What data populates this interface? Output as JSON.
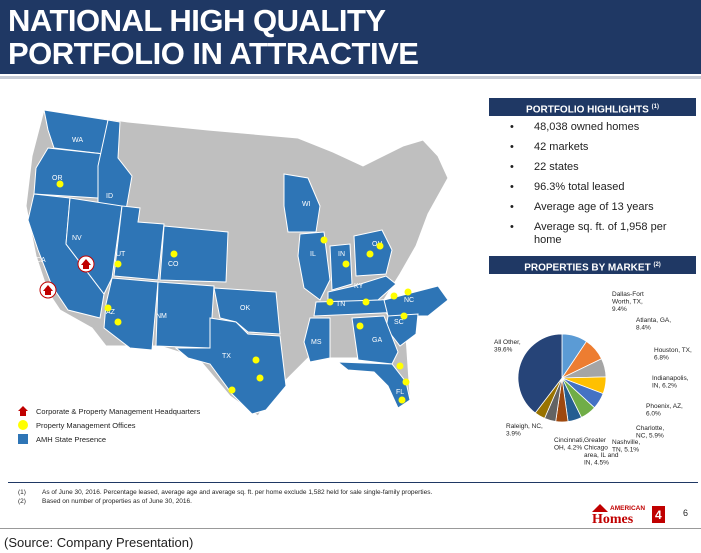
{
  "header": {
    "title": "NATIONAL HIGH QUALITY PORTFOLIO IN ATTRACTIVE MARKETS"
  },
  "highlights": {
    "title": "PORTFOLIO HIGHLIGHTS",
    "title_sup": "(1)",
    "items": [
      "48,038 owned homes",
      "42 markets",
      "22 states",
      "96.3% total leased",
      "Average age of 13 years",
      "Average sq. ft. of 1,958 per home"
    ]
  },
  "markets": {
    "title": "PROPERTIES BY MARKET",
    "title_sup": "(2)"
  },
  "chart_data": {
    "type": "pie",
    "title": "PROPERTIES BY MARKET (2)",
    "slices": [
      {
        "label": "Dallas-Fort Worth, TX, 9.4%",
        "value": 9.4,
        "color": "#5b9bd5"
      },
      {
        "label": "Atlanta, GA, 8.4%",
        "value": 8.4,
        "color": "#ed7d31"
      },
      {
        "label": "Houston, TX, 6.8%",
        "value": 6.8,
        "color": "#a5a5a5"
      },
      {
        "label": "Indianapolis, IN, 6.2%",
        "value": 6.2,
        "color": "#ffc000"
      },
      {
        "label": "Phoenix, AZ, 6.0%",
        "value": 6.0,
        "color": "#4472c4"
      },
      {
        "label": "Charlotte, NC, 5.9%",
        "value": 5.9,
        "color": "#70ad47"
      },
      {
        "label": "Nashville, TN, 5.1%",
        "value": 5.1,
        "color": "#255e91"
      },
      {
        "label": "Greater Chicago area, IL and IN, 4.5%",
        "value": 4.5,
        "color": "#9e480e"
      },
      {
        "label": "Cincinnati, OH, 4.2%",
        "value": 4.2,
        "color": "#636363"
      },
      {
        "label": "Raleigh, NC, 3.9%",
        "value": 3.9,
        "color": "#997300"
      },
      {
        "label": "All Other, 39.6%",
        "value": 39.6,
        "color": "#264478"
      }
    ]
  },
  "map": {
    "colors": {
      "presence": "#2e75b6",
      "other": "#bfbfbf",
      "office": "#ffff00",
      "hq": "#c00000"
    },
    "state_labels": [
      "WA",
      "OR",
      "ID",
      "NV",
      "CA",
      "UT",
      "CO",
      "AZ",
      "NM",
      "OK",
      "TX",
      "WI",
      "IL",
      "IN",
      "OH",
      "KY",
      "TN",
      "NC",
      "SC",
      "GA",
      "MS",
      "FL"
    ]
  },
  "legend": {
    "items": [
      {
        "icon": "house-icon",
        "label": "Corporate & Property Management Headquarters"
      },
      {
        "icon": "yellow-dot-icon",
        "label": "Property Management Offices"
      },
      {
        "icon": "blue-square-icon",
        "label": "AMH State Presence"
      }
    ]
  },
  "footnotes": [
    {
      "num": "(1)",
      "text": "As of June 30, 2016. Percentage leased, average age and average sq. ft. per home exclude 1,582 held for sale single-family properties."
    },
    {
      "num": "(2)",
      "text": "Based on number of properties as of June 30, 2016."
    }
  ],
  "logo": {
    "line1": "AMERICAN",
    "line2": "Homes",
    "badge": "4"
  },
  "page_number": "6",
  "source": "(Source: Company Presentation)"
}
